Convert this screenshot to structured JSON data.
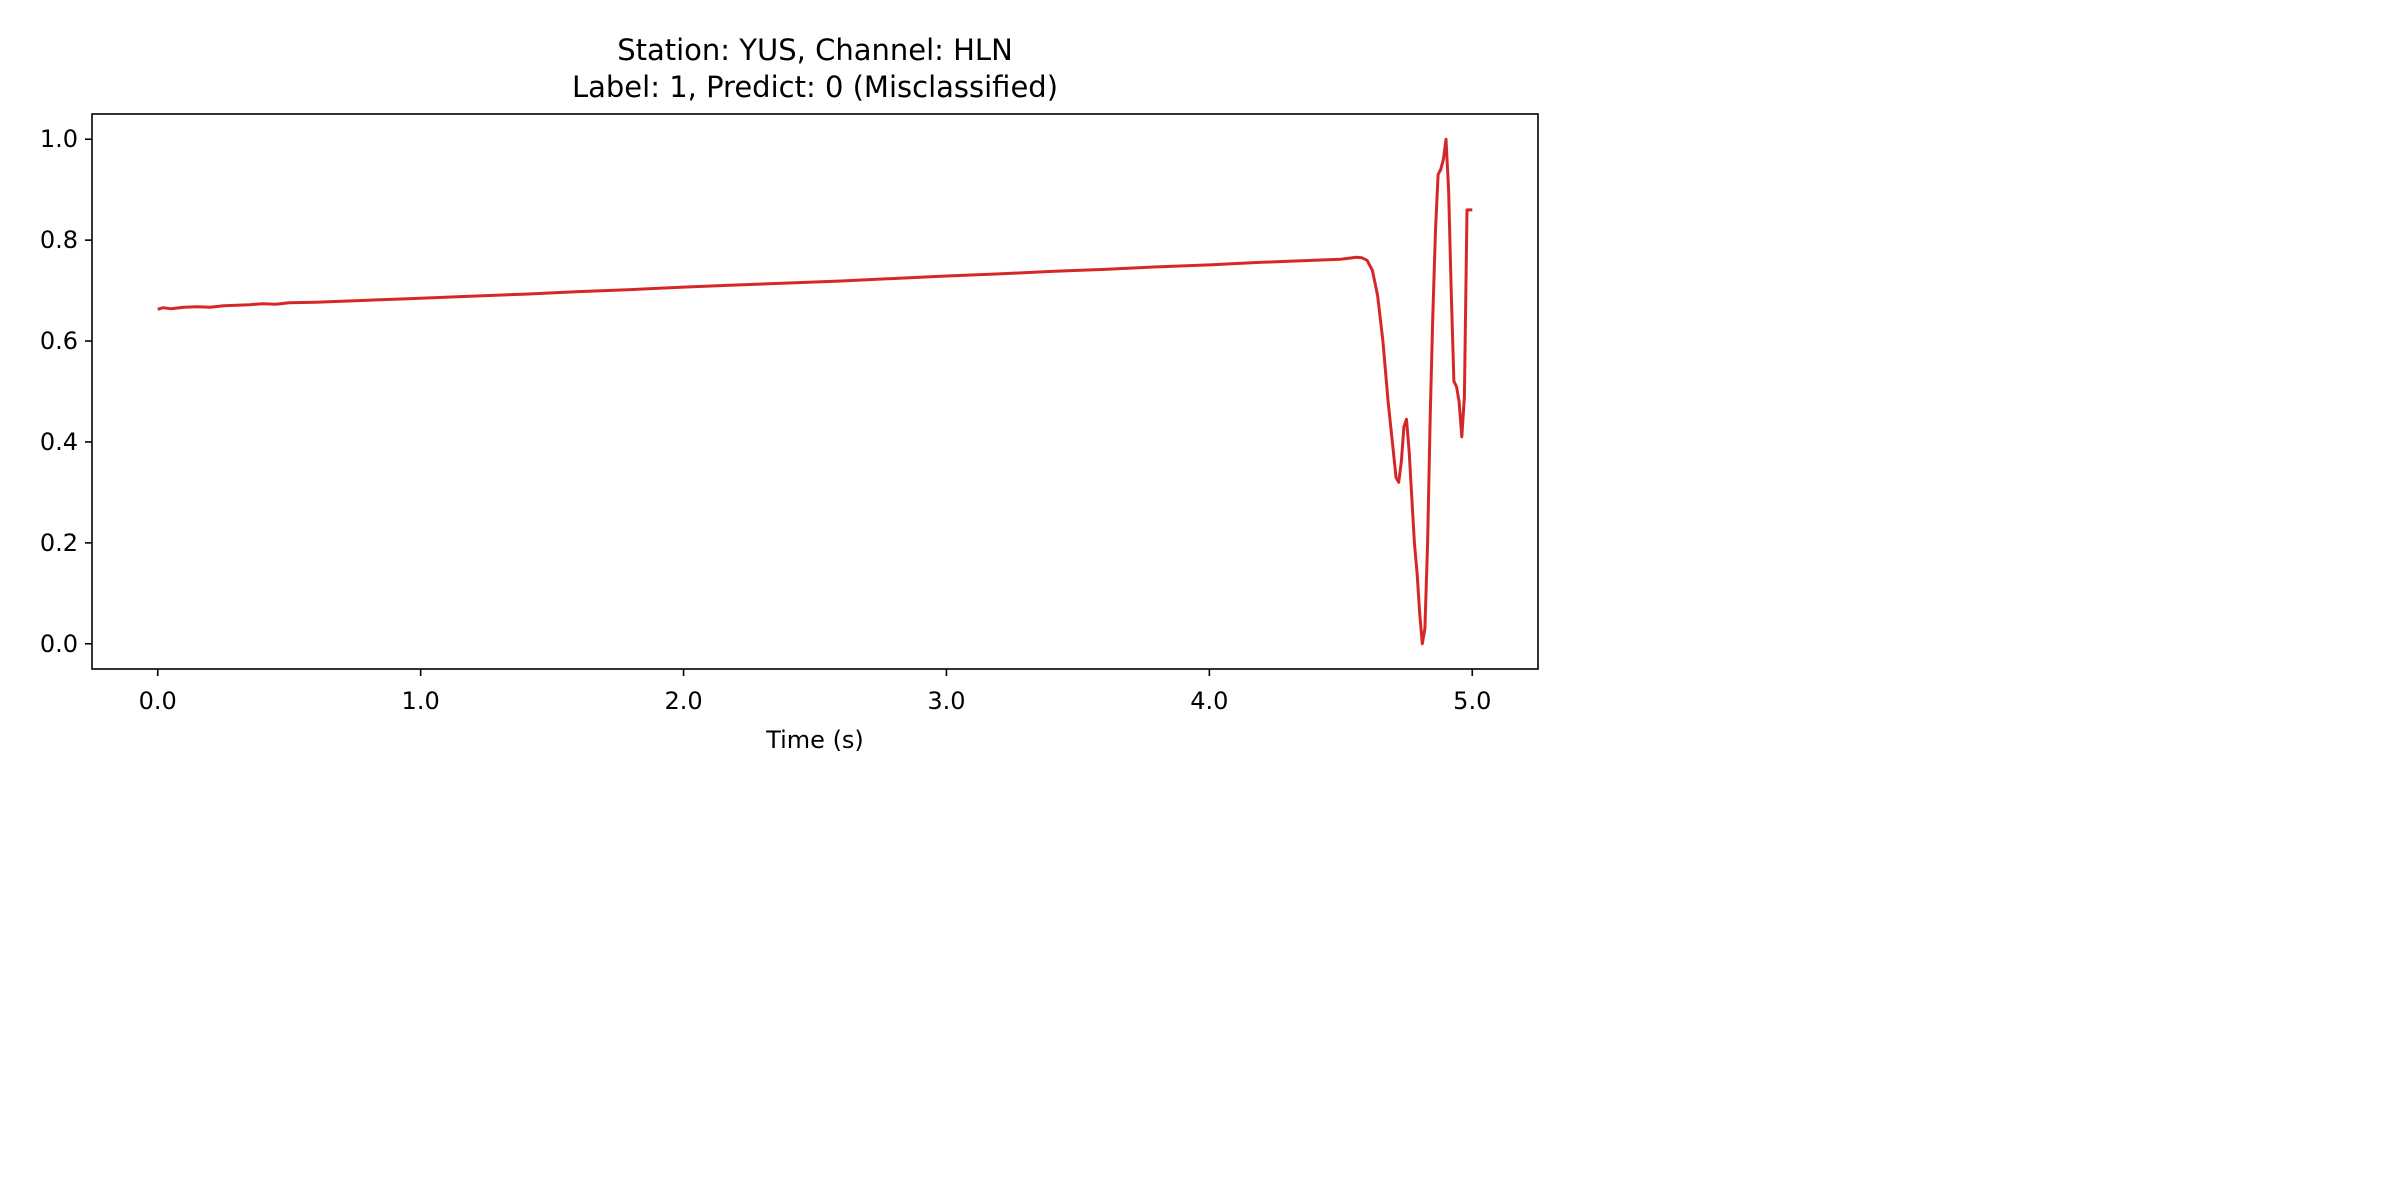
{
  "chart_data": {
    "type": "line",
    "title_lines": [
      "Station: YUS, Channel: HLN",
      "Label: 1, Predict: 0 (Misclassified)"
    ],
    "xlabel": "Time (s)",
    "ylabel": "",
    "xlim": [
      -0.25,
      5.25
    ],
    "ylim": [
      -0.05,
      1.05
    ],
    "x_ticks": [
      0.0,
      1.0,
      2.0,
      3.0,
      4.0,
      5.0
    ],
    "x_tick_labels": [
      "0.0",
      "1.0",
      "2.0",
      "3.0",
      "4.0",
      "5.0"
    ],
    "y_ticks": [
      0.0,
      0.2,
      0.4,
      0.6,
      0.8,
      1.0
    ],
    "y_tick_labels": [
      "0.0",
      "0.2",
      "0.4",
      "0.6",
      "0.8",
      "1.0"
    ],
    "grid": false,
    "series": [
      {
        "color": "#d62728",
        "x": [
          0.0,
          0.02,
          0.05,
          0.1,
          0.15,
          0.2,
          0.25,
          0.3,
          0.35,
          0.4,
          0.45,
          0.5,
          0.6,
          0.7,
          0.8,
          0.9,
          1.0,
          1.2,
          1.4,
          1.6,
          1.8,
          2.0,
          2.2,
          2.4,
          2.6,
          2.8,
          3.0,
          3.2,
          3.4,
          3.6,
          3.8,
          4.0,
          4.2,
          4.4,
          4.5,
          4.56,
          4.58,
          4.6,
          4.62,
          4.64,
          4.66,
          4.68,
          4.7,
          4.71,
          4.72,
          4.73,
          4.74,
          4.75,
          4.76,
          4.77,
          4.78,
          4.79,
          4.8,
          4.81,
          4.82,
          4.83,
          4.84,
          4.85,
          4.86,
          4.87,
          4.88,
          4.89,
          4.9,
          4.91,
          4.92,
          4.93,
          4.94,
          4.95,
          4.96,
          4.97,
          4.98,
          4.99,
          5.0
        ],
        "y": [
          0.663,
          0.666,
          0.664,
          0.667,
          0.668,
          0.667,
          0.67,
          0.671,
          0.672,
          0.674,
          0.673,
          0.676,
          0.677,
          0.679,
          0.681,
          0.683,
          0.685,
          0.689,
          0.693,
          0.698,
          0.702,
          0.707,
          0.711,
          0.715,
          0.719,
          0.724,
          0.729,
          0.733,
          0.738,
          0.742,
          0.747,
          0.751,
          0.756,
          0.76,
          0.762,
          0.766,
          0.765,
          0.76,
          0.74,
          0.69,
          0.6,
          0.48,
          0.38,
          0.33,
          0.32,
          0.36,
          0.43,
          0.445,
          0.38,
          0.29,
          0.2,
          0.14,
          0.06,
          0.0,
          0.03,
          0.2,
          0.45,
          0.65,
          0.82,
          0.93,
          0.94,
          0.96,
          1.0,
          0.9,
          0.7,
          0.52,
          0.51,
          0.48,
          0.41,
          0.49,
          0.86,
          0.86,
          0.86
        ]
      }
    ]
  }
}
